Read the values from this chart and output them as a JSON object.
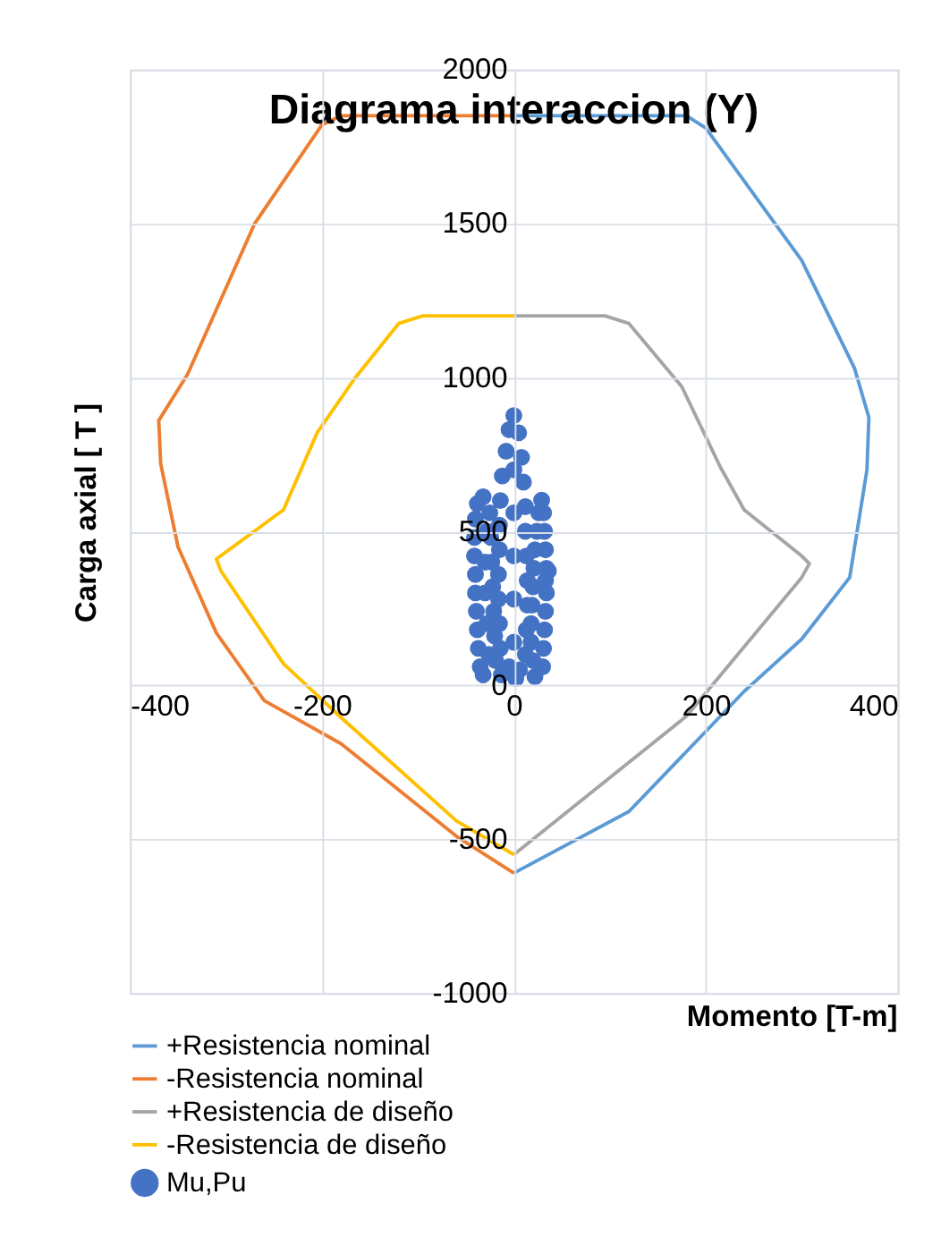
{
  "chart_data": {
    "type": "line",
    "title": "Diagrama interaccion (Y)",
    "xlabel": "Momento [T-m]",
    "ylabel": "Carga axial [ T ]",
    "xlim": [
      -400,
      400
    ],
    "xticks": [
      -400,
      -200,
      0,
      200,
      400
    ],
    "ylim": [
      -1000,
      2000
    ],
    "yticks": [
      -1000,
      -500,
      0,
      500,
      1000,
      1500,
      2000
    ],
    "grid": true,
    "legend": "bottom",
    "series": [
      {
        "name": "+Resistencia nominal",
        "color": "#5b9bd5",
        "x": [
          0,
          180,
          200,
          300,
          355,
          370,
          368,
          350,
          300,
          240,
          120,
          0
        ],
        "values": [
          1850,
          1850,
          1810,
          1380,
          1030,
          870,
          700,
          350,
          150,
          -20,
          -410,
          -610
        ]
      },
      {
        "name": "-Resistencia nominal",
        "color": "#ed7d31",
        "x": [
          0,
          -180,
          -200,
          -270,
          -340,
          -370,
          -368,
          -350,
          -310,
          -260,
          -180,
          -60,
          0
        ],
        "values": [
          1850,
          1850,
          1820,
          1500,
          1010,
          860,
          720,
          450,
          170,
          -50,
          -190,
          -490,
          -610
        ]
      },
      {
        "name": "+Resistencia de diseño",
        "color": "#a5a5a5",
        "x": [
          0,
          95,
          120,
          175,
          215,
          240,
          300,
          308,
          300,
          180,
          0
        ],
        "values": [
          1200,
          1200,
          1175,
          970,
          710,
          570,
          420,
          395,
          350,
          -100,
          -550
        ]
      },
      {
        "name": "-Resistencia de diseño",
        "color": "#ffc000",
        "x": [
          0,
          -95,
          -120,
          -165,
          -205,
          -240,
          -310,
          -305,
          -240,
          -180,
          -60,
          0
        ],
        "values": [
          1200,
          1200,
          1175,
          1000,
          820,
          570,
          410,
          370,
          70,
          -105,
          -440,
          -550
        ]
      },
      {
        "name": "Mu,Pu",
        "color": "#4472c4",
        "type": "scatter",
        "marker": "circle",
        "x": [
          -32,
          -38,
          -40,
          -41,
          -41,
          -40,
          -40,
          -39,
          -38,
          -37,
          -35,
          -32,
          -25,
          -24,
          -23,
          -22,
          -21,
          -20,
          -19,
          -28,
          -30,
          -30,
          -28,
          -26,
          0,
          -5,
          5,
          -8,
          8,
          -12,
          10,
          -14,
          12,
          -15,
          12,
          -15,
          13,
          -16,
          14,
          -16,
          14,
          -15,
          13,
          -14,
          12,
          -13,
          2,
          0,
          0,
          0,
          0,
          0,
          -5,
          6,
          29,
          26,
          24,
          22,
          21,
          20,
          19,
          18,
          18,
          20,
          22,
          36,
          33,
          31,
          32,
          33,
          34,
          34,
          33,
          32,
          31,
          30
        ],
        "values": [
          612,
          590,
          540,
          480,
          420,
          360,
          300,
          240,
          180,
          120,
          60,
          34,
          560,
          480,
          400,
          320,
          240,
          160,
          80,
          500,
          400,
          300,
          200,
          100,
          876,
          830,
          820,
          760,
          740,
          680,
          660,
          600,
          580,
          520,
          500,
          440,
          420,
          360,
          340,
          280,
          260,
          200,
          180,
          120,
          100,
          34,
          22,
          700,
          560,
          420,
          280,
          140,
          60,
          50,
          601,
          560,
          500,
          440,
          380,
          320,
          260,
          200,
          140,
          80,
          28,
          371,
          340,
          560,
          500,
          440,
          380,
          300,
          240,
          180,
          120,
          60
        ]
      }
    ]
  }
}
